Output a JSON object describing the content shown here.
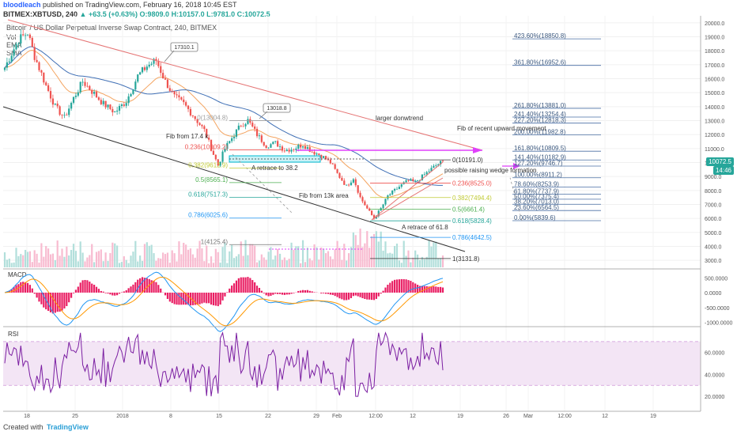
{
  "header": {
    "author": "bloodleach",
    "published": "published on TradingView.com, February 16, 2018 10:45 EST",
    "symbol": "BITMEX:XBTUSD, 240",
    "change": "▲ +63.5 (+0.63%)",
    "o": "O:9809.0",
    "h": "H:10157.0",
    "l": "L:9781.0",
    "c": "C:10072.5",
    "instrument": "Bitcoin / US Dollar Perpetual Inverse Swap Contract, 240, BITMEX",
    "legend_items": [
      "Vol",
      "EMA",
      "SMA"
    ]
  },
  "footer": {
    "created": "Created with",
    "brand": "TradingView"
  },
  "colors": {
    "up": "#26a69a",
    "down": "#ef5350",
    "magenta": "#e040fb",
    "macd_line": "#2196f3",
    "signal_line": "#ff9800",
    "rsi_line": "#7b1fa2",
    "rsi_band": "#f3e5f5",
    "fib_blue": "#4a6fa5",
    "cyan": "#00bcd4"
  },
  "chart_data": {
    "type": "candlestick",
    "price_axis": {
      "ticks": [
        3000,
        4000,
        5000,
        6000,
        7000,
        8000,
        9000,
        10000,
        11000,
        12000,
        13000,
        14000,
        15000,
        16000,
        17000,
        18000,
        19000,
        20000
      ],
      "labels": [
        "3000.0",
        "4000.0",
        "5000.0",
        "6000.0",
        "7000.0",
        "8000.0",
        "9000.0",
        "10000.0",
        "11000.0",
        "12000.0",
        "13000.0",
        "14000.0",
        "15000.0",
        "16000.0",
        "17000.0",
        "18000.0",
        "19000.0",
        "20000.0"
      ],
      "ylim": [
        2500,
        20500
      ],
      "last_price": "10072.5",
      "countdown": "14:46"
    },
    "time_axis": {
      "labels": [
        "18",
        "25",
        "2018",
        "8",
        "15",
        "22",
        "29",
        "Feb",
        "12:00",
        "12",
        "19",
        "26",
        "Mar",
        "12:00",
        "12",
        "19"
      ]
    },
    "price_path": [
      [
        0,
        16800
      ],
      [
        6,
        18800
      ],
      [
        10,
        19300
      ],
      [
        13,
        17600
      ],
      [
        18,
        15500
      ],
      [
        22,
        14000
      ],
      [
        26,
        13200
      ],
      [
        30,
        14600
      ],
      [
        34,
        15800
      ],
      [
        38,
        15100
      ],
      [
        43,
        14200
      ],
      [
        48,
        13600
      ],
      [
        53,
        14400
      ],
      [
        58,
        16200
      ],
      [
        62,
        16900
      ],
      [
        66,
        17310
      ],
      [
        70,
        15800
      ],
      [
        74,
        14700
      ],
      [
        78,
        14200
      ],
      [
        82,
        13400
      ],
      [
        87,
        12300
      ],
      [
        91,
        10600
      ],
      [
        93,
        9800
      ],
      [
        96,
        11000
      ],
      [
        100,
        12000
      ],
      [
        103,
        12700
      ],
      [
        106,
        13018
      ],
      [
        110,
        12000
      ],
      [
        114,
        11200
      ],
      [
        118,
        11400
      ],
      [
        122,
        10900
      ],
      [
        126,
        11000
      ],
      [
        130,
        11300
      ],
      [
        134,
        10800
      ],
      [
        138,
        10500
      ],
      [
        142,
        10000
      ],
      [
        145,
        9200
      ],
      [
        149,
        8300
      ],
      [
        152,
        8900
      ],
      [
        155,
        7500
      ],
      [
        158,
        6700
      ],
      [
        161,
        6000
      ],
      [
        164,
        6700
      ],
      [
        167,
        7600
      ],
      [
        170,
        8000
      ],
      [
        173,
        8400
      ],
      [
        176,
        8700
      ],
      [
        179,
        8600
      ],
      [
        182,
        9000
      ],
      [
        185,
        9400
      ],
      [
        188,
        9800
      ],
      [
        191,
        10072.5
      ]
    ],
    "macd": {
      "axis_labels": [
        "500.0000",
        "0.0000",
        "-500.0000",
        "-1000.0000"
      ],
      "ticks": [
        500,
        0,
        -500,
        -1000
      ]
    },
    "rsi": {
      "axis_labels": [
        "60.0000",
        "40.0000",
        "20.0000"
      ],
      "ticks": [
        60,
        40,
        20
      ],
      "upper_band": 70,
      "lower_band": 30
    },
    "fib_right": [
      {
        "label": "423.60%(18850.8)",
        "price": 18850.8
      },
      {
        "label": "361.80%(16952.6)",
        "price": 16952.6
      },
      {
        "label": "261.80%(13881.0)",
        "price": 13881.0
      },
      {
        "label": "241.40%(13254.4)",
        "price": 13254.4
      },
      {
        "label": "227.20%(12818.3)",
        "price": 12818.3
      },
      {
        "label": "200.00%(11982.8)",
        "price": 11982.8
      },
      {
        "label": "161.80%(10809.5)",
        "price": 10809.5
      },
      {
        "label": "141.40%(10182.9)",
        "price": 10182.9
      },
      {
        "label": "127.20%(9746.7)",
        "price": 9746.7
      },
      {
        "label": "100.00%(8911.2)",
        "price": 8911.2
      },
      {
        "label": "78.60%(8253.9)",
        "price": 8253.9
      },
      {
        "label": "61.80%(7737.9)",
        "price": 7737.9
      },
      {
        "label": "50.00%(7375.4)",
        "price": 7375.4
      },
      {
        "label": "38.20%(7013.0)",
        "price": 7013.0
      },
      {
        "label": "23.60%(6564.5)",
        "price": 6564.5
      },
      {
        "label": "0.00%(5839.6)",
        "price": 5839.6
      }
    ],
    "fib_17k": [
      {
        "label": "0(13004.8)",
        "price": 13004.8
      },
      {
        "label": "0.236(10909.2)",
        "price": 10909.2
      },
      {
        "label": "0.382(9612.9)",
        "price": 9612.9
      },
      {
        "label": "0.5(8565.1)",
        "price": 8565.1
      },
      {
        "label": "0.618(7517.3)",
        "price": 7517.3
      },
      {
        "label": "0.786(6025.6)",
        "price": 6025.6
      },
      {
        "label": "1(4125.4)",
        "price": 4125.4
      }
    ],
    "fib_13k": [
      {
        "label": "0(10191.0)",
        "price": 10191.0
      },
      {
        "label": "0.236(8525.0)",
        "price": 8525.0
      },
      {
        "label": "0.382(7494.4)",
        "price": 7494.4
      },
      {
        "label": "0.5(6661.4)",
        "price": 6661.4
      },
      {
        "label": "0.618(5828.4)",
        "price": 5828.4
      },
      {
        "label": "0.786(4642.5)",
        "price": 4642.5
      },
      {
        "label": "1(3131.8)",
        "price": 3131.8
      }
    ],
    "annotations": {
      "peak1": "17310.1",
      "peak2": "13018.8",
      "fib_17k": "Fib from 17.4 k",
      "fib_13k": "Fib from 13k area",
      "retrace38": "A retrace to 38.2",
      "retrace618": "A retrace of 61.8",
      "downtrend": "larger donwtrend",
      "fib_upward": "Fib of recent upward movement",
      "wedge": "possible raising wedge formation"
    }
  }
}
